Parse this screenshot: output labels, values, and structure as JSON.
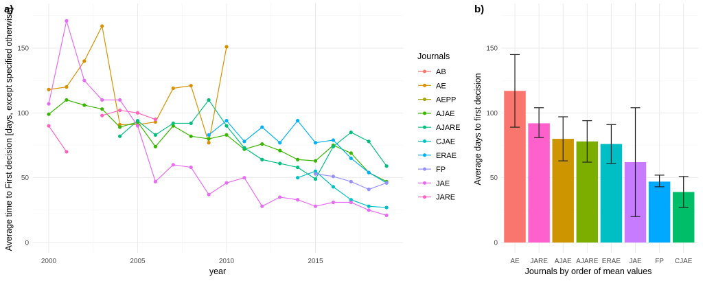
{
  "chart_data": [
    {
      "type": "line",
      "panel_label": "a)",
      "xlabel": "year",
      "ylabel": "Average time to First decision [days, except specified otherwise]",
      "xlim": [
        1999.1,
        2019.9
      ],
      "ylim": [
        -12,
        180
      ],
      "xticks": [
        2000,
        2005,
        2010,
        2015
      ],
      "yticks": [
        0,
        50,
        100,
        150
      ],
      "grid": true,
      "legend": {
        "title": "Journals",
        "position": "right"
      },
      "x": [
        2000,
        2001,
        2002,
        2003,
        2004,
        2005,
        2006,
        2007,
        2008,
        2009,
        2010,
        2011,
        2012,
        2013,
        2014,
        2015,
        2016,
        2017,
        2018,
        2019
      ],
      "series": [
        {
          "name": "AB",
          "color": "#F8766D",
          "values": [
            null,
            null,
            null,
            null,
            null,
            null,
            null,
            null,
            null,
            null,
            null,
            null,
            null,
            null,
            null,
            null,
            null,
            null,
            null,
            null
          ]
        },
        {
          "name": "AE",
          "color": "#D89000",
          "values": [
            118,
            120,
            140,
            167,
            91,
            91,
            93,
            119,
            121,
            77,
            151,
            null,
            null,
            null,
            null,
            null,
            null,
            null,
            null,
            null
          ]
        },
        {
          "name": "AEPP",
          "color": "#A3A500",
          "values": [
            null,
            null,
            null,
            null,
            null,
            null,
            null,
            null,
            null,
            null,
            null,
            null,
            null,
            null,
            null,
            null,
            null,
            null,
            null,
            null
          ]
        },
        {
          "name": "AJAE",
          "color": "#39B600",
          "values": [
            99,
            110,
            106,
            103,
            89,
            93,
            74,
            90,
            82,
            80,
            83,
            72,
            76,
            71,
            64,
            63,
            75,
            69,
            54,
            47
          ]
        },
        {
          "name": "AJARE",
          "color": "#00BF7D",
          "values": [
            null,
            null,
            null,
            null,
            82,
            94,
            83,
            92,
            92,
            110,
            90,
            73,
            64,
            61,
            58,
            49,
            74,
            85,
            78,
            59
          ]
        },
        {
          "name": "CJAE",
          "color": "#00BFC4",
          "values": [
            null,
            null,
            null,
            null,
            null,
            null,
            null,
            null,
            null,
            null,
            null,
            null,
            null,
            null,
            50,
            55,
            43,
            33,
            28,
            27
          ]
        },
        {
          "name": "ERAE",
          "color": "#00B0F6",
          "values": [
            null,
            null,
            null,
            null,
            null,
            null,
            null,
            null,
            null,
            83,
            94,
            78,
            89,
            77,
            94,
            77,
            79,
            65,
            54,
            46
          ]
        },
        {
          "name": "FP",
          "color": "#9590FF",
          "values": [
            null,
            null,
            null,
            null,
            null,
            null,
            null,
            null,
            null,
            null,
            null,
            null,
            null,
            null,
            null,
            53,
            51,
            47,
            41,
            46
          ]
        },
        {
          "name": "JAE",
          "color": "#E76BF3",
          "values": [
            107,
            171,
            125,
            110,
            110,
            90,
            47,
            60,
            58,
            37,
            46,
            50,
            28,
            35,
            33,
            28,
            31,
            31,
            25,
            21
          ]
        },
        {
          "name": "JARE",
          "color": "#FF62BC",
          "values": [
            90,
            70,
            null,
            98,
            102,
            100,
            95,
            null,
            null,
            null,
            null,
            null,
            null,
            null,
            null,
            null,
            null,
            null,
            null,
            null
          ]
        }
      ]
    },
    {
      "type": "bar",
      "panel_label": "b)",
      "xlabel": "Journals by order of mean values",
      "ylabel": "Average days to first decision",
      "ylim": [
        -12,
        180
      ],
      "yticks": [
        0,
        50,
        100,
        150
      ],
      "grid": true,
      "categories": [
        "AE",
        "JARE",
        "AJAE",
        "AJARE",
        "ERAE",
        "JAE",
        "FP",
        "CJAE"
      ],
      "values": [
        117,
        92,
        80,
        78,
        76,
        62,
        47,
        39
      ],
      "error_low": [
        89,
        81,
        63,
        62,
        61,
        20,
        43,
        27
      ],
      "error_high": [
        145,
        104,
        97,
        94,
        91,
        104,
        52,
        51
      ],
      "colors": [
        "#F8766D",
        "#FF61CC",
        "#CD9600",
        "#7CAE00",
        "#00BFC4",
        "#C77CFF",
        "#00A9FF",
        "#00BE67"
      ]
    }
  ]
}
